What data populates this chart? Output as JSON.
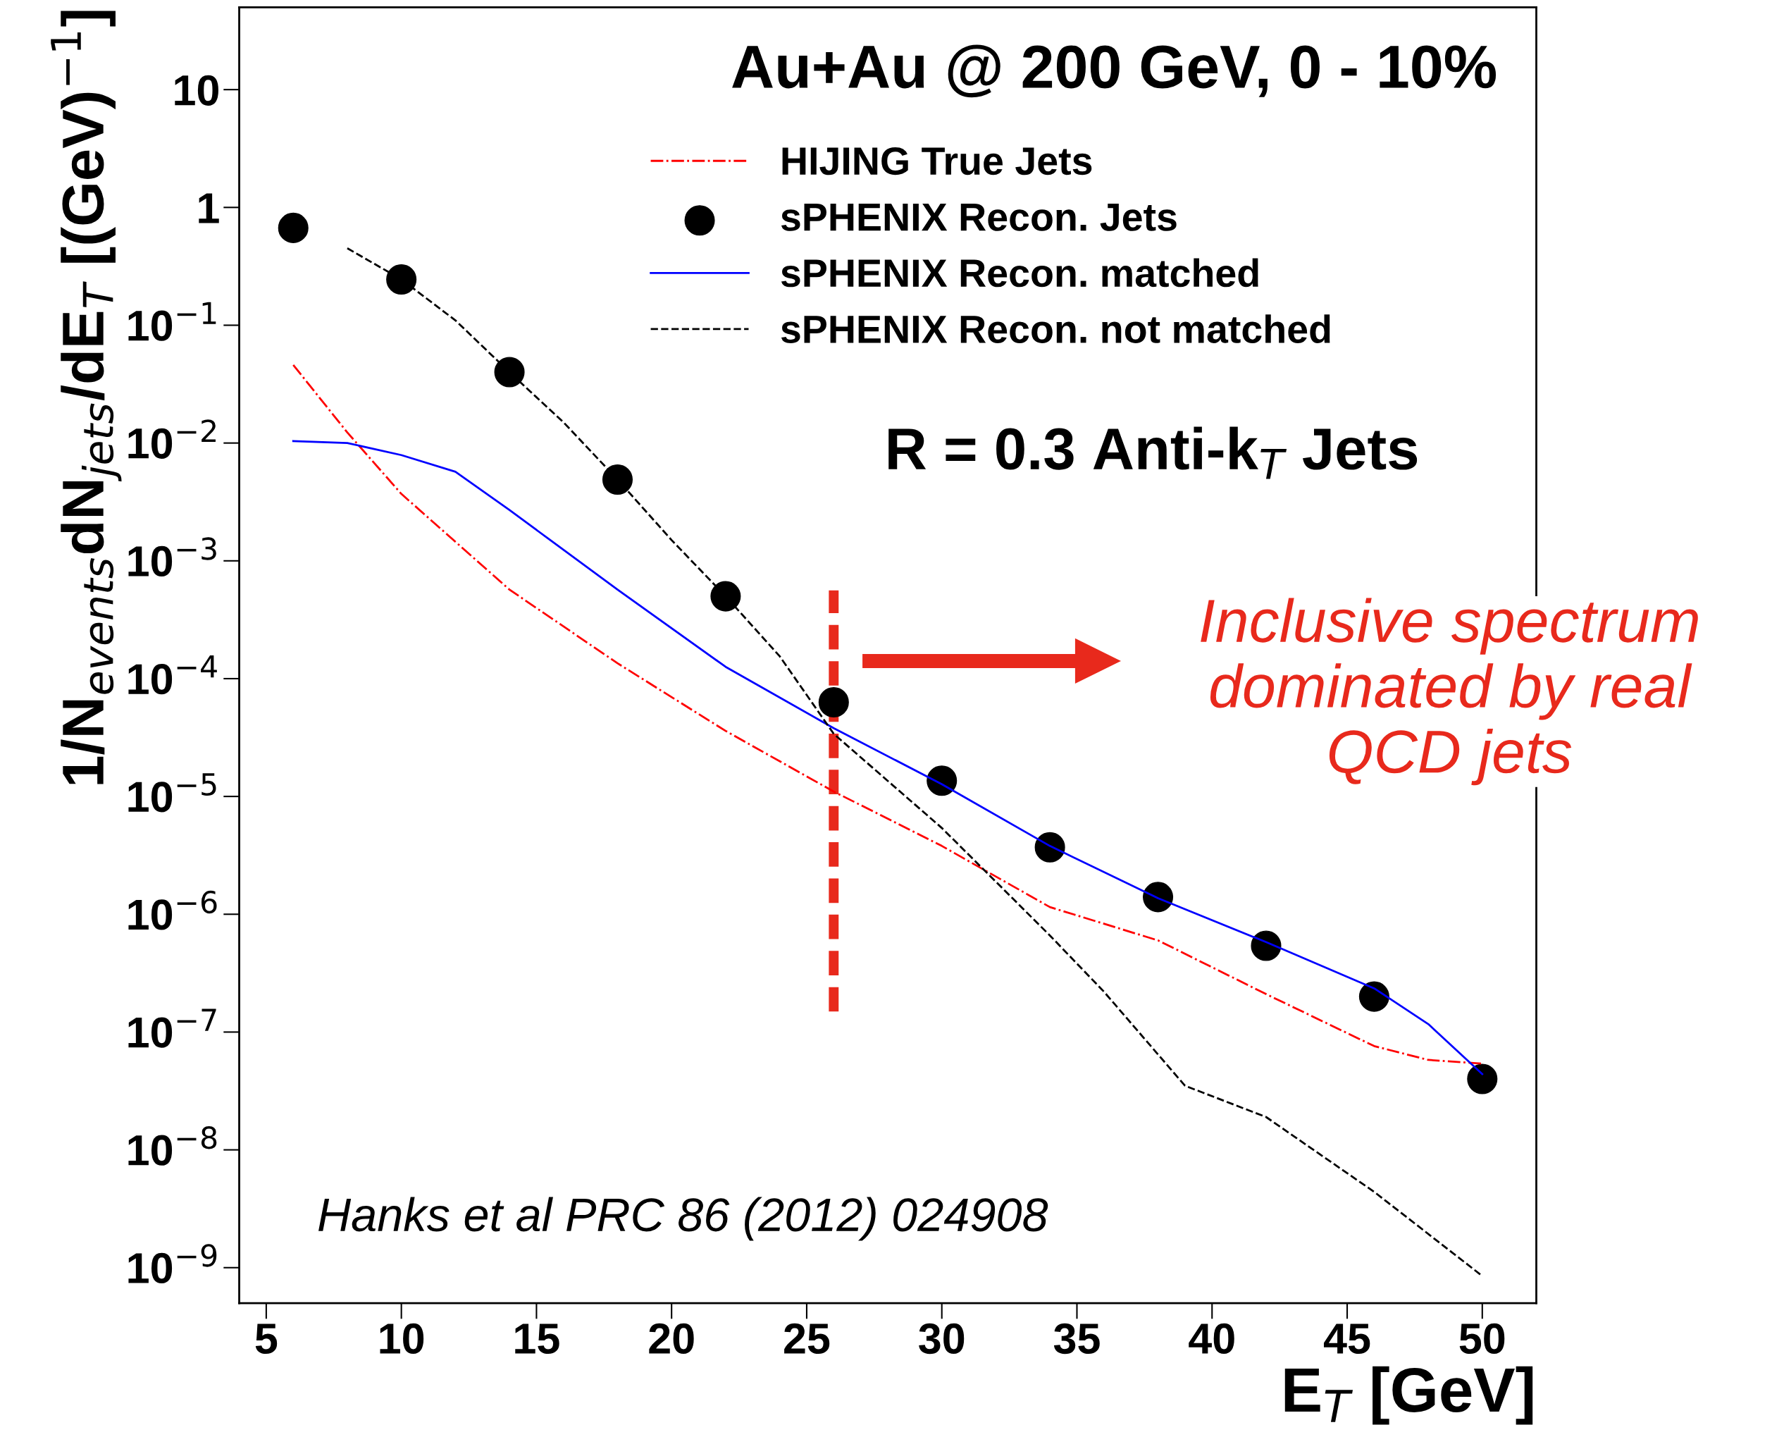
{
  "chart_data": {
    "type": "line",
    "xlabel": "E$_{T}$ [GeV]",
    "ylabel": "1/N$_{events}$dN$_{jets}$/dE$_{T}$ [(GeV)$^{−1}$]",
    "log": "y",
    "xlim": [
      4,
      52
    ],
    "ylim": [
      5e-10,
      50
    ],
    "xticks": [
      5,
      10,
      15,
      20,
      25,
      30,
      35,
      40,
      45,
      50
    ],
    "yticks": [
      {
        "value": 1e-09,
        "label": "10$^{−9}$"
      },
      {
        "value": 1e-08,
        "label": "10$^{−8}$"
      },
      {
        "value": 1e-07,
        "label": "10$^{−7}$"
      },
      {
        "value": 1e-06,
        "label": "10$^{−6}$"
      },
      {
        "value": 1e-05,
        "label": "10$^{−5}$"
      },
      {
        "value": 0.0001,
        "label": "10$^{−4}$"
      },
      {
        "value": 0.001,
        "label": "10$^{−3}$"
      },
      {
        "value": 0.01,
        "label": "10$^{−2}$"
      },
      {
        "value": 0.1,
        "label": "10$^{−1}$"
      },
      1,
      10
    ],
    "grid": false,
    "legend": "top",
    "series": [
      {
        "name": "HIJING True Jets",
        "line_style": "dashdot",
        "color": "#ff0000",
        "x": [
          6,
          8,
          10,
          14,
          18,
          22,
          26,
          30,
          34,
          38,
          42,
          46,
          48,
          50
        ],
        "values": [
          0.046,
          0.0123,
          0.0037,
          0.00057,
          0.000135,
          3.6e-05,
          1.1e-05,
          3.8e-06,
          1.15e-06,
          6e-07,
          2.1e-07,
          7.6e-08,
          5.8e-08,
          5.4e-08
        ]
      },
      {
        "name": "sPHENIX Recon. Jets",
        "type": "scatter",
        "marker": "circle",
        "color": "#000000",
        "x": [
          6,
          10,
          14,
          18,
          22,
          26,
          30,
          34,
          38,
          42,
          46,
          50
        ],
        "values": [
          0.67,
          0.245,
          0.04,
          0.0049,
          0.0005,
          6.3e-05,
          1.36e-05,
          3.7e-06,
          1.4e-06,
          5.4e-07,
          2e-07,
          4e-08
        ]
      },
      {
        "name": "sPHENIX Recon. matched",
        "line_style": "solid",
        "color": "#0000ff",
        "x": [
          6,
          8,
          10,
          12,
          14,
          18,
          22,
          26,
          30,
          34,
          38,
          42,
          46,
          48,
          50
        ],
        "values": [
          0.0104,
          0.01,
          0.0079,
          0.0057,
          0.0027,
          0.00057,
          0.000126,
          3.8e-05,
          1.27e-05,
          3.8e-06,
          1.37e-06,
          5.8e-07,
          2.35e-07,
          1.17e-07,
          4.4e-08
        ]
      },
      {
        "name": "sPHENIX Recon. not matched",
        "line_style": "dashed",
        "color": "#000000",
        "x": [
          8,
          10,
          12,
          14,
          16,
          18,
          20,
          22,
          24,
          26,
          30,
          34,
          36,
          39,
          42,
          46,
          50
        ],
        "values": [
          0.45,
          0.245,
          0.11,
          0.04,
          0.015,
          0.0049,
          0.0015,
          0.0005,
          0.000155,
          3.4e-05,
          5.4e-06,
          6.6e-07,
          2.2e-07,
          3.5e-08,
          1.9e-08,
          4.4e-09,
          8.5e-10
        ]
      }
    ],
    "ref_lines": [
      {
        "axis": "x",
        "value": 26,
        "color": "#e8291c",
        "line_style": "dashed"
      }
    ],
    "annotations": [
      "Au+Au @ 200 GeV, 0 - 10%",
      "R = 0.3 Anti-k$_{T}$ Jets",
      "Inclusive spectrum\ndominated by real\nQCD jets",
      "Hanks et al PRC 86 (2012) 024908"
    ]
  }
}
